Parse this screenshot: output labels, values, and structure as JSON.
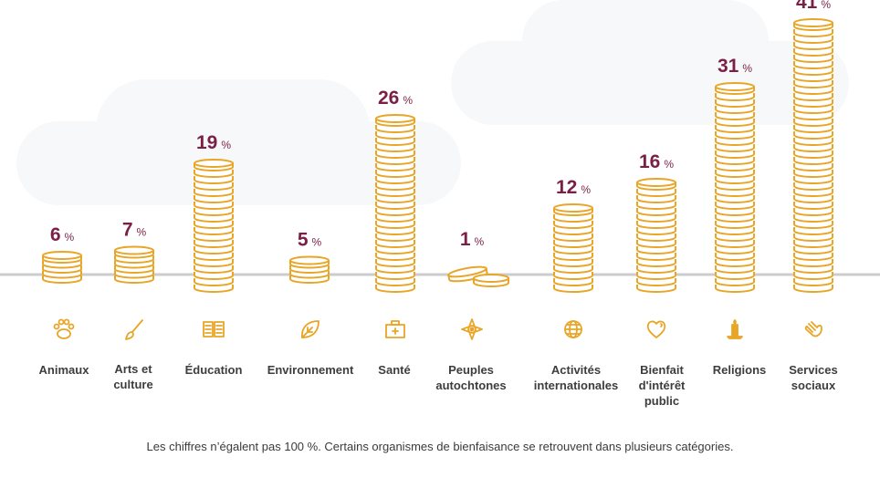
{
  "chart_data": {
    "type": "bar",
    "style": "coin-stacks",
    "categories": [
      "Animaux",
      "Arts et culture",
      "Éducation",
      "Environnement",
      "Santé",
      "Peuples autochtones",
      "Activités internationales",
      "Bienfait d'intérêt public",
      "Religions",
      "Services sociaux"
    ],
    "values": [
      6,
      7,
      19,
      5,
      26,
      1,
      12,
      16,
      31,
      41
    ],
    "value_suffix": "%",
    "title": "",
    "xlabel": "",
    "ylabel": "",
    "ylim": [
      0,
      41
    ],
    "grid": false,
    "legend": "none",
    "icons": [
      "paw-icon",
      "paintbrush-icon",
      "book-icon",
      "leaf-icon",
      "first-aid-kit-icon",
      "compass-star-icon",
      "globe-icon",
      "heart-icon",
      "candle-icon",
      "hands-icon"
    ]
  },
  "labels": [
    [
      "Animaux"
    ],
    [
      "Arts et",
      "culture"
    ],
    [
      "Éducation"
    ],
    [
      "Environnement"
    ],
    [
      "Santé"
    ],
    [
      "Peuples",
      "autochtones"
    ],
    [
      "Activités",
      "internationales"
    ],
    [
      "Bienfait",
      "d'intérêt",
      "public"
    ],
    [
      "Religions"
    ],
    [
      "Services",
      "sociaux"
    ]
  ],
  "footnote": "Les chiffres n’égalent pas 100 %. Certains organismes de bienfaisance se retrouvent dans plusieurs catégories.",
  "colors": {
    "coin": "#e8a526",
    "value_text": "#7a1f45",
    "label_text": "#3d3d3d",
    "baseline": "#cccccc",
    "cloud": "#f7f8fa"
  }
}
